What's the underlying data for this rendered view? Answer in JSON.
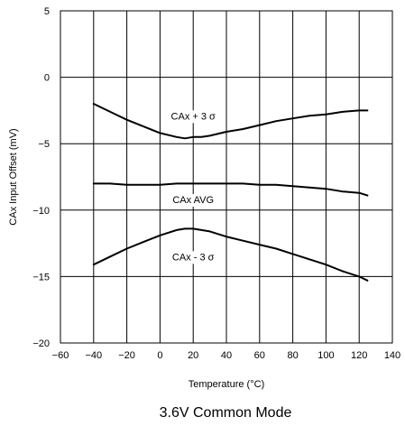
{
  "chart_data": {
    "type": "line",
    "title": "3.6V Common Mode",
    "xlabel": "Temperature (°C)",
    "ylabel": "CAx Input Offset (mV)",
    "xlim": [
      -60,
      140
    ],
    "ylim": [
      -20,
      5
    ],
    "xticks": [
      -60,
      -40,
      -20,
      0,
      20,
      40,
      60,
      80,
      100,
      120,
      140
    ],
    "yticks": [
      5,
      0,
      -5,
      -10,
      -15,
      -20
    ],
    "grid": true,
    "annotations": [
      {
        "text": "CAx + 3 σ",
        "x": 20,
        "y": -2.9
      },
      {
        "text": "CAx AVG",
        "x": 20,
        "y": -9.2
      },
      {
        "text": "CAx - 3 σ",
        "x": 20,
        "y": -13.5
      }
    ],
    "series": [
      {
        "x": [
          -40,
          -30,
          -20,
          -10,
          0,
          10,
          15,
          20,
          25,
          30,
          40,
          50,
          60,
          70,
          80,
          90,
          100,
          110,
          120,
          125
        ],
        "values": [
          -2.0,
          -2.6,
          -3.2,
          -3.7,
          -4.2,
          -4.5,
          -4.6,
          -4.5,
          -4.5,
          -4.4,
          -4.1,
          -3.9,
          -3.6,
          -3.3,
          -3.1,
          -2.9,
          -2.8,
          -2.6,
          -2.5,
          -2.5
        ]
      },
      {
        "x": [
          -40,
          -30,
          -20,
          -10,
          0,
          10,
          20,
          30,
          40,
          50,
          60,
          70,
          80,
          90,
          100,
          110,
          120,
          125
        ],
        "values": [
          -8.0,
          -8.0,
          -8.1,
          -8.1,
          -8.1,
          -8.0,
          -8.0,
          -8.0,
          -8.0,
          -8.0,
          -8.1,
          -8.1,
          -8.2,
          -8.3,
          -8.4,
          -8.6,
          -8.7,
          -8.9
        ]
      },
      {
        "x": [
          -40,
          -30,
          -20,
          -10,
          0,
          10,
          15,
          20,
          25,
          30,
          40,
          50,
          60,
          70,
          80,
          90,
          100,
          110,
          120,
          125
        ],
        "values": [
          -14.1,
          -13.5,
          -12.9,
          -12.4,
          -11.9,
          -11.5,
          -11.4,
          -11.4,
          -11.5,
          -11.6,
          -12.0,
          -12.3,
          -12.6,
          -12.9,
          -13.3,
          -13.7,
          -14.1,
          -14.6,
          -15.0,
          -15.3
        ]
      }
    ]
  }
}
